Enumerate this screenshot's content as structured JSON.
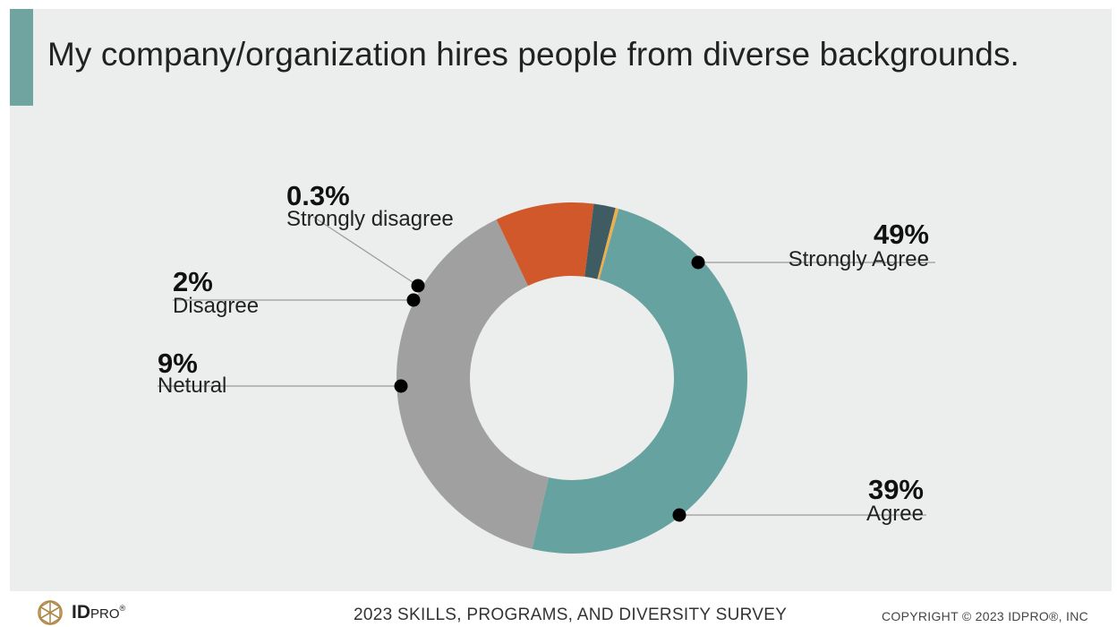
{
  "slide": {
    "title": "My company/organization hires people from diverse backgrounds.",
    "accent_color": "#6fa4a0"
  },
  "footer": {
    "logo_text_bold": "ID",
    "logo_text": "PRO",
    "logo_mark": "®",
    "logo_icon": "idpro-globe-icon",
    "survey_title": "2023 SKILLS, PROGRAMS, AND DIVERSITY SURVEY",
    "copyright": "COPYRIGHT © 2023 IDPRO®, INC"
  },
  "chart_data": {
    "type": "pie",
    "donut": true,
    "title": "My company/organization hires people from diverse backgrounds.",
    "slices": [
      {
        "label": "Strongly Agree",
        "display": "49%",
        "value": 49,
        "color": "#66a29f"
      },
      {
        "label": "Agree",
        "display": "39%",
        "value": 39,
        "color": "#a0a0a0"
      },
      {
        "label": "Netural",
        "display": "9%",
        "value": 9,
        "color": "#d0582b"
      },
      {
        "label": "Disagree",
        "display": "2%",
        "value": 2,
        "color": "#3f5c63"
      },
      {
        "label": "Strongly disagree",
        "display": "0.3%",
        "value": 0.3,
        "color": "#efae4b"
      }
    ]
  }
}
